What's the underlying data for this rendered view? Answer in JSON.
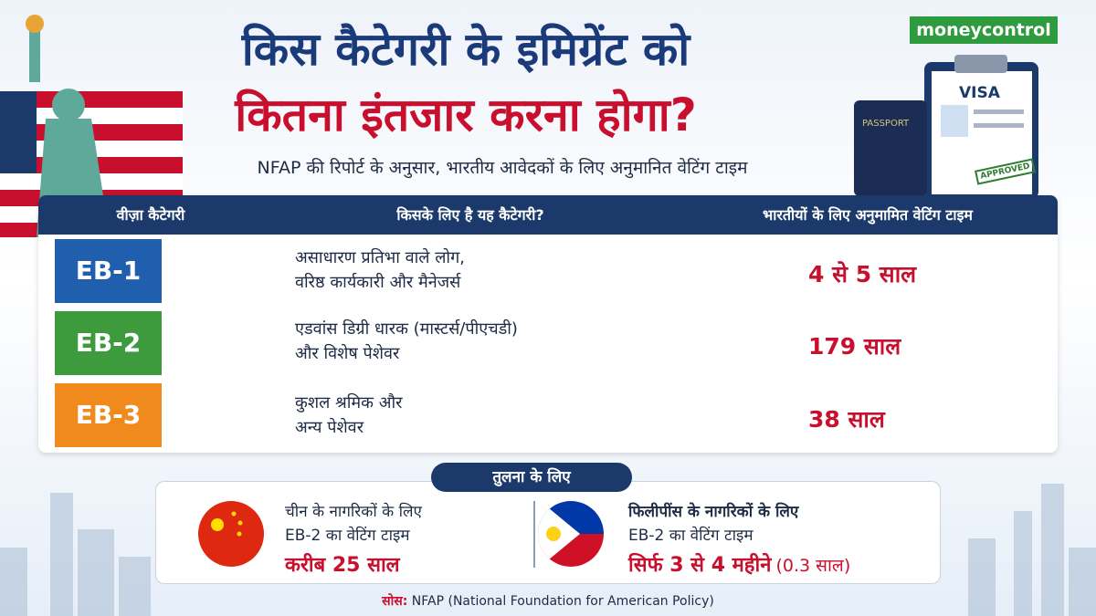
{
  "header": {
    "logo": "moneycontrol",
    "title_line1": "किस कैटेगरी के इमिग्रेंट को",
    "title_line2": "कितना इंतजार करना होगा?",
    "subtitle": "NFAP की रिपोर्ट के अनुसार, भारतीय आवेदकों के लिए अनुमानित वेटिंग टाइम"
  },
  "illustration": {
    "visa": "VISA",
    "passport": "PASSPORT",
    "stamp": "APPROVED"
  },
  "table": {
    "headers": [
      "वीज़ा कैटेगरी",
      "किसके लिए है यह कैटेगरी?",
      "भारतीयों के लिए अनुमामित वेटिंग टाइम"
    ],
    "rows": [
      {
        "category": "EB-1",
        "description": [
          "असाधारण प्रतिभा वाले लोग,",
          "वरिष्ठ कार्यकारी और मैनेजर्स"
        ],
        "waiting_time": "4 से 5 साल"
      },
      {
        "category": "EB-2",
        "description": [
          "एडवांस डिग्री धारक (मास्टर्स/पीएचडी)",
          "और विशेष पेशेवर"
        ],
        "waiting_time": "179 साल"
      },
      {
        "category": "EB-3",
        "description": [
          "कुशल श्रमिक और",
          "अन्य पेशेवर"
        ],
        "waiting_time": "38 साल"
      }
    ]
  },
  "comparison": {
    "label": "तुलना के लिए",
    "items": [
      {
        "line1": "चीन के नागरिकों के लिए",
        "line2": "EB-2 का वेटिंग टाइम",
        "time": [
          "करीब 25 साल"
        ]
      },
      {
        "line1": "फिलीपींस के नागरिकों के लिए",
        "line2": "EB-2 का वेटिंग टाइम",
        "time": [
          "सिर्फ 3 से 4 महीने",
          "(0.3 साल)"
        ]
      }
    ]
  },
  "source": {
    "label": "सोस:",
    "text": "NFAP (National Foundation for American Policy)"
  }
}
